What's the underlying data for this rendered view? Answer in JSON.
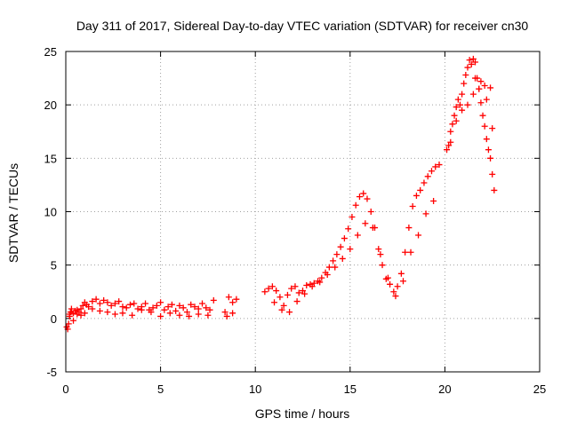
{
  "chart_data": {
    "type": "scatter",
    "title": "Day 311 of 2017, Sidereal Day-to-day VTEC variation (SDTVAR) for receiver cn30",
    "xlabel": "GPS time / hours",
    "ylabel": "SDTVAR / TECUs",
    "xlim": [
      0,
      25
    ],
    "ylim": [
      -5,
      25
    ],
    "x_ticks": [
      "0",
      "5",
      "10",
      "15",
      "20",
      "25"
    ],
    "y_ticks": [
      "-5",
      "0",
      "5",
      "10",
      "15",
      "20",
      "25"
    ],
    "grid": true,
    "legend": "none",
    "marker": "+",
    "series": [
      {
        "name": "SDTVAR",
        "color": "#ff0000",
        "x": [
          0.05,
          0.1,
          0.15,
          0.2,
          0.25,
          0.3,
          0.4,
          0.5,
          0.6,
          0.7,
          0.8,
          0.9,
          1.0,
          1.1,
          1.2,
          1.4,
          1.6,
          1.8,
          2.0,
          2.2,
          2.4,
          2.6,
          2.8,
          3.0,
          3.2,
          3.4,
          3.6,
          3.8,
          4.0,
          4.2,
          4.4,
          4.6,
          4.8,
          5.0,
          5.2,
          5.4,
          5.6,
          5.8,
          6.0,
          6.2,
          6.4,
          6.6,
          6.8,
          7.0,
          7.2,
          7.4,
          7.6,
          7.8,
          8.4,
          8.6,
          8.8,
          9.0,
          0.2,
          0.4,
          0.6,
          0.8,
          1.0,
          1.4,
          1.8,
          2.2,
          2.6,
          3.0,
          3.5,
          4.0,
          4.5,
          5.0,
          5.5,
          6.0,
          6.5,
          7.0,
          7.5,
          8.5,
          8.8,
          10.5,
          10.7,
          10.9,
          11.1,
          11.3,
          11.5,
          11.7,
          11.9,
          12.1,
          12.3,
          12.5,
          12.7,
          12.9,
          13.1,
          13.3,
          13.5,
          13.7,
          13.9,
          14.1,
          14.3,
          14.5,
          14.7,
          14.9,
          15.1,
          15.3,
          15.5,
          15.7,
          15.9,
          16.1,
          16.3,
          16.5,
          16.7,
          16.9,
          17.1,
          17.3,
          17.5,
          17.7,
          17.9,
          18.1,
          18.3,
          18.5,
          18.7,
          18.9,
          19.1,
          19.3,
          19.5,
          19.7,
          11.0,
          11.4,
          11.8,
          12.2,
          12.6,
          13.0,
          13.4,
          13.8,
          14.2,
          14.6,
          15.0,
          15.4,
          15.8,
          16.2,
          16.6,
          17.0,
          17.4,
          17.8,
          18.2,
          18.6,
          19.0,
          19.4,
          20.1,
          20.2,
          20.3,
          20.4,
          20.5,
          20.6,
          20.7,
          20.8,
          20.9,
          21.0,
          21.1,
          21.2,
          21.3,
          21.4,
          21.5,
          21.6,
          21.7,
          21.8,
          21.9,
          22.0,
          22.1,
          22.2,
          22.3,
          22.4,
          22.5,
          22.6,
          20.3,
          20.6,
          20.9,
          21.2,
          21.5,
          21.8,
          22.1,
          22.4,
          21.6,
          21.9,
          22.2,
          22.5
        ],
        "y": [
          -0.8,
          -1.0,
          -0.5,
          0.2,
          0.6,
          0.9,
          0.5,
          0.7,
          0.4,
          0.6,
          0.9,
          1.2,
          1.5,
          1.3,
          1.1,
          1.6,
          1.8,
          1.4,
          1.7,
          1.5,
          1.2,
          1.4,
          1.6,
          1.1,
          1.0,
          1.3,
          1.4,
          0.9,
          1.1,
          1.4,
          0.8,
          1.0,
          1.2,
          1.5,
          0.8,
          1.1,
          1.3,
          0.7,
          1.2,
          1.0,
          0.6,
          1.3,
          1.1,
          0.9,
          1.4,
          1.0,
          0.8,
          1.7,
          0.6,
          2.0,
          1.5,
          1.8,
          0.4,
          -0.2,
          0.8,
          0.3,
          0.5,
          0.9,
          0.7,
          0.6,
          0.4,
          0.5,
          0.3,
          0.8,
          0.6,
          0.2,
          0.5,
          0.3,
          0.2,
          0.4,
          0.3,
          0.2,
          0.5,
          2.5,
          2.8,
          3.0,
          2.6,
          2.0,
          1.2,
          2.2,
          2.8,
          3.0,
          2.4,
          2.6,
          3.1,
          3.2,
          3.3,
          3.5,
          3.8,
          4.3,
          4.8,
          5.4,
          6.0,
          6.7,
          7.5,
          8.4,
          9.5,
          10.6,
          11.4,
          11.7,
          11.2,
          10.0,
          8.5,
          6.5,
          5.0,
          3.7,
          3.2,
          2.5,
          3.0,
          4.2,
          6.2,
          8.5,
          10.5,
          11.5,
          12.0,
          12.7,
          13.3,
          13.8,
          14.2,
          14.4,
          1.5,
          0.8,
          0.6,
          1.6,
          2.3,
          3.0,
          3.4,
          4.1,
          4.8,
          5.6,
          6.5,
          7.8,
          8.9,
          8.5,
          6.0,
          3.8,
          2.1,
          3.5,
          6.2,
          7.8,
          9.8,
          11.0,
          15.8,
          16.2,
          17.5,
          18.2,
          19.0,
          19.8,
          20.5,
          20.0,
          21.0,
          22.0,
          22.8,
          23.5,
          24.2,
          23.8,
          24.3,
          24.0,
          22.5,
          21.5,
          20.2,
          19.0,
          18.0,
          16.8,
          15.8,
          15.0,
          13.5,
          12.0,
          16.5,
          18.5,
          19.5,
          20.0,
          21.0,
          21.5,
          21.8,
          21.6,
          22.5,
          22.2,
          20.5,
          17.8
        ]
      }
    ]
  }
}
